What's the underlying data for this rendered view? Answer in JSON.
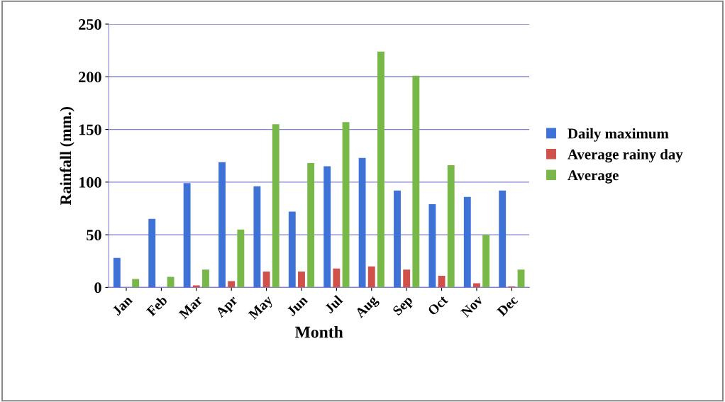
{
  "chart_data": {
    "type": "bar",
    "xlabel": "Month",
    "ylabel": "Rainfall (mm.)",
    "categories": [
      "Jan",
      "Feb",
      "Mar",
      "Apr",
      "May",
      "Jun",
      "Jul",
      "Aug",
      "Sep",
      "Oct",
      "Nov",
      "Dec"
    ],
    "series": [
      {
        "name": "Daily maximum",
        "color": "#3f72d6",
        "values": [
          28,
          65,
          99,
          119,
          96,
          72,
          115,
          123,
          92,
          79,
          86,
          92
        ]
      },
      {
        "name": "Average rainy day",
        "color": "#d0504a",
        "values": [
          0,
          0,
          2,
          6,
          15,
          15,
          18,
          20,
          17,
          11,
          4,
          1
        ]
      },
      {
        "name": "Average",
        "color": "#78b848",
        "values": [
          8,
          10,
          17,
          55,
          155,
          118,
          157,
          224,
          201,
          116,
          50,
          17
        ]
      }
    ],
    "ylim": [
      0,
      250
    ],
    "yticks": [
      0,
      50,
      100,
      150,
      200,
      250
    ],
    "grid": "y",
    "legend": "right"
  }
}
